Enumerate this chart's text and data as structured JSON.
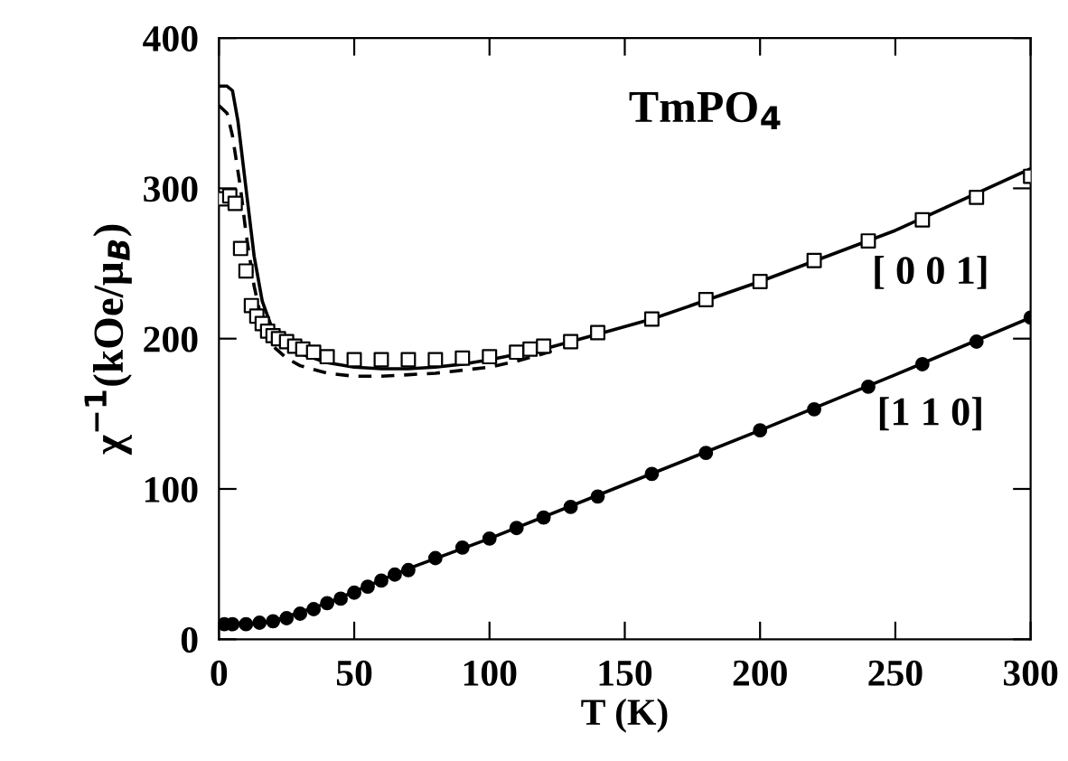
{
  "chart_data": {
    "type": "line",
    "title": "TmPO$_{4}$",
    "xlabel": "T (K)",
    "ylabel": "χ$^{−1}$(kOe/μ$_{B}$)",
    "xlim": [
      0,
      300
    ],
    "ylim": [
      0,
      400
    ],
    "xticks": [
      0,
      50,
      100,
      150,
      200,
      250,
      300
    ],
    "yticks": [
      0,
      100,
      200,
      300,
      400
    ],
    "grid": false,
    "legend": false,
    "series": [
      {
        "type": "scatter",
        "name": "[ 0 0 1]",
        "marker": "square",
        "color": "#000000",
        "x": [
          2,
          4,
          6,
          8,
          10,
          12,
          14,
          16,
          18,
          20,
          22,
          25,
          28,
          31,
          35,
          40,
          50,
          60,
          70,
          80,
          90,
          100,
          110,
          115,
          120,
          130,
          140,
          160,
          180,
          200,
          220,
          240,
          260,
          280,
          300
        ],
        "values": [
          293,
          295,
          290,
          260,
          245,
          222,
          215,
          210,
          205,
          202,
          200,
          198,
          195,
          193,
          191,
          188,
          186,
          186,
          186,
          186,
          187,
          188,
          191,
          193,
          195,
          198,
          204,
          213,
          226,
          238,
          252,
          265,
          279,
          294,
          308
        ]
      },
      {
        "line_style": "solid",
        "color": "#000000",
        "x": [
          0,
          3,
          5,
          7,
          10,
          13,
          16,
          20,
          25,
          30,
          40,
          50,
          60,
          70,
          80,
          90,
          100,
          120,
          140,
          160,
          200,
          250,
          300
        ],
        "values": [
          368,
          368,
          365,
          345,
          300,
          255,
          225,
          205,
          195,
          190,
          184,
          181,
          180,
          180,
          181,
          183,
          186,
          193,
          203,
          213,
          238,
          272,
          313
        ]
      },
      {
        "line_style": "dashed",
        "color": "#000000",
        "x": [
          0,
          3,
          5,
          8,
          10,
          13,
          16,
          20,
          25,
          30,
          40,
          50,
          60,
          70,
          80,
          90,
          100,
          110,
          120,
          125
        ],
        "values": [
          355,
          350,
          335,
          300,
          270,
          235,
          210,
          195,
          187,
          182,
          177,
          175,
          175,
          176,
          177,
          179,
          181,
          185,
          190,
          193
        ]
      },
      {
        "type": "scatter",
        "name": "[1 1 0]",
        "marker": "circle",
        "color": "#000000",
        "x": [
          2,
          5,
          10,
          15,
          20,
          25,
          30,
          35,
          40,
          45,
          50,
          55,
          60,
          65,
          70,
          80,
          90,
          100,
          110,
          120,
          130,
          140,
          160,
          180,
          200,
          220,
          240,
          260,
          280,
          300
        ],
        "values": [
          10,
          10,
          10,
          11,
          12,
          14,
          17,
          20,
          24,
          27,
          31,
          35,
          39,
          43,
          46,
          54,
          61,
          67,
          74,
          81,
          88,
          95,
          110,
          124,
          139,
          153,
          168,
          183,
          198,
          214
        ]
      },
      {
        "line_style": "solid",
        "color": "#000000",
        "x": [
          0,
          10,
          20,
          40,
          70,
          100,
          150,
          200,
          250,
          300
        ],
        "values": [
          10,
          10,
          12,
          24,
          47,
          67,
          103,
          139,
          176,
          214
        ]
      }
    ]
  }
}
